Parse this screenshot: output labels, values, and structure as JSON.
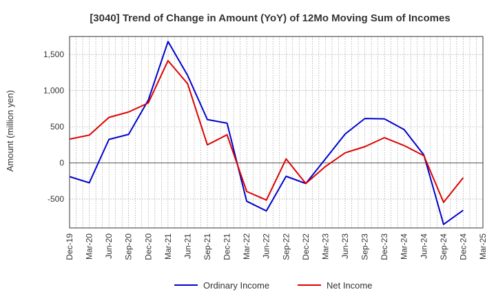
{
  "chart_data": {
    "type": "line",
    "title": "[3040]  Trend of Change in Amount (YoY) of 12Mo Moving Sum of Incomes",
    "xlabel": "",
    "ylabel": "Amount (million yen)",
    "ylim": [
      -900,
      1750
    ],
    "yticks": [
      -500,
      0,
      500,
      1000,
      1500
    ],
    "ytick_labels": [
      "-500",
      "0",
      "500",
      "1,000",
      "1,500"
    ],
    "grid": true,
    "categories": [
      "Dec-19",
      "Mar-20",
      "Jun-20",
      "Sep-20",
      "Dec-20",
      "Mar-21",
      "Jun-21",
      "Sep-21",
      "Dec-21",
      "Mar-22",
      "Jun-22",
      "Sep-22",
      "Dec-22",
      "Mar-23",
      "Jun-23",
      "Sep-23",
      "Dec-23",
      "Mar-24",
      "Jun-24",
      "Sep-24",
      "Dec-24",
      "Mar-25"
    ],
    "series": [
      {
        "name": "Ordinary Income",
        "color": "#0000cc",
        "values": [
          -190,
          -275,
          325,
          395,
          870,
          1680,
          1210,
          600,
          550,
          -530,
          -665,
          -185,
          -285,
          55,
          400,
          615,
          610,
          460,
          110,
          -850,
          -655,
          null
        ]
      },
      {
        "name": "Net Income",
        "color": "#dd0000",
        "values": [
          330,
          385,
          630,
          705,
          830,
          1415,
          1095,
          250,
          390,
          -395,
          -515,
          55,
          -285,
          -50,
          140,
          225,
          350,
          240,
          100,
          -545,
          -205,
          null
        ]
      }
    ],
    "legend": [
      "Ordinary Income",
      "Net Income"
    ],
    "legend_position": "bottom-center"
  }
}
